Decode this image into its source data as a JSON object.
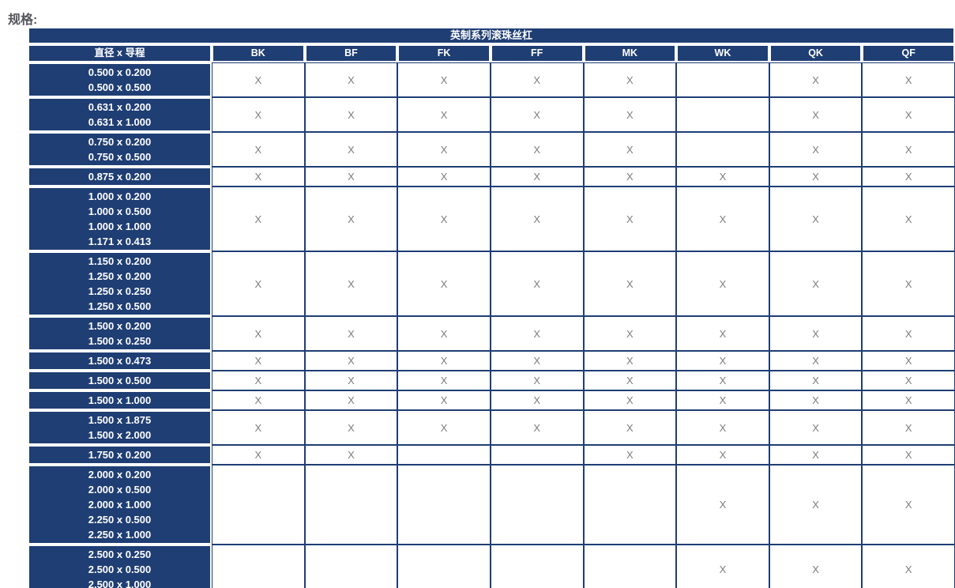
{
  "page": {
    "title": "规格:"
  },
  "table": {
    "title": "英制系列滚珠丝杠",
    "columns": [
      "直径 x 导程",
      "BK",
      "BF",
      "FK",
      "FF",
      "MK",
      "WK",
      "QK",
      "QF"
    ],
    "mark": "X",
    "rows": [
      {
        "labels": [
          "0.500 x 0.200",
          "0.500 x 0.500"
        ],
        "cells": [
          "X",
          "X",
          "X",
          "X",
          "X",
          "",
          "X",
          "X"
        ]
      },
      {
        "labels": [
          "0.631 x 0.200",
          "0.631 x 1.000"
        ],
        "cells": [
          "X",
          "X",
          "X",
          "X",
          "X",
          "",
          "X",
          "X"
        ]
      },
      {
        "labels": [
          "0.750 x 0.200",
          "0.750 x 0.500"
        ],
        "cells": [
          "X",
          "X",
          "X",
          "X",
          "X",
          "",
          "X",
          "X"
        ]
      },
      {
        "labels": [
          "0.875 x 0.200"
        ],
        "cells": [
          "X",
          "X",
          "X",
          "X",
          "X",
          "X",
          "X",
          "X"
        ]
      },
      {
        "labels": [
          "1.000 x 0.200",
          "1.000 x 0.500",
          "1.000 x 1.000",
          "1.171 x 0.413"
        ],
        "cells": [
          "X",
          "X",
          "X",
          "X",
          "X",
          "X",
          "X",
          "X"
        ]
      },
      {
        "labels": [
          "1.150 x 0.200",
          "1.250 x 0.200",
          "1.250 x 0.250",
          "1.250 x 0.500"
        ],
        "cells": [
          "X",
          "X",
          "X",
          "X",
          "X",
          "X",
          "X",
          "X"
        ]
      },
      {
        "labels": [
          "1.500 x 0.200",
          "1.500 x 0.250"
        ],
        "cells": [
          "X",
          "X",
          "X",
          "X",
          "X",
          "X",
          "X",
          "X"
        ]
      },
      {
        "labels": [
          "1.500 x 0.473"
        ],
        "cells": [
          "X",
          "X",
          "X",
          "X",
          "X",
          "X",
          "X",
          "X"
        ]
      },
      {
        "labels": [
          "1.500 x 0.500"
        ],
        "cells": [
          "X",
          "X",
          "X",
          "X",
          "X",
          "X",
          "X",
          "X"
        ]
      },
      {
        "labels": [
          "1.500 x 1.000"
        ],
        "cells": [
          "X",
          "X",
          "X",
          "X",
          "X",
          "X",
          "X",
          "X"
        ]
      },
      {
        "labels": [
          "1.500 x 1.875",
          "1.500 x 2.000"
        ],
        "cells": [
          "X",
          "X",
          "X",
          "X",
          "X",
          "X",
          "X",
          "X"
        ]
      },
      {
        "labels": [
          "1.750 x 0.200"
        ],
        "cells": [
          "X",
          "X",
          "",
          "",
          "X",
          "X",
          "X",
          "X"
        ]
      },
      {
        "labels": [
          "2.000 x 0.200",
          "2.000 x 0.500",
          "2.000 x 1.000",
          "2.250 x 0.500",
          "2.250 x 1.000"
        ],
        "cells": [
          "",
          "",
          "",
          "",
          "",
          "X",
          "X",
          "X"
        ]
      },
      {
        "labels": [
          "2.500 x 0.250",
          "2.500 x 0.500",
          "2.500 x 1.000"
        ],
        "cells": [
          "",
          "",
          "",
          "",
          "",
          "X",
          "X",
          "X"
        ]
      }
    ]
  },
  "colors": {
    "navy": "#1F3E74",
    "mark_gray": "#7C7D80",
    "title_gray": "#54565B",
    "page_bg": "#FFFFFF"
  }
}
